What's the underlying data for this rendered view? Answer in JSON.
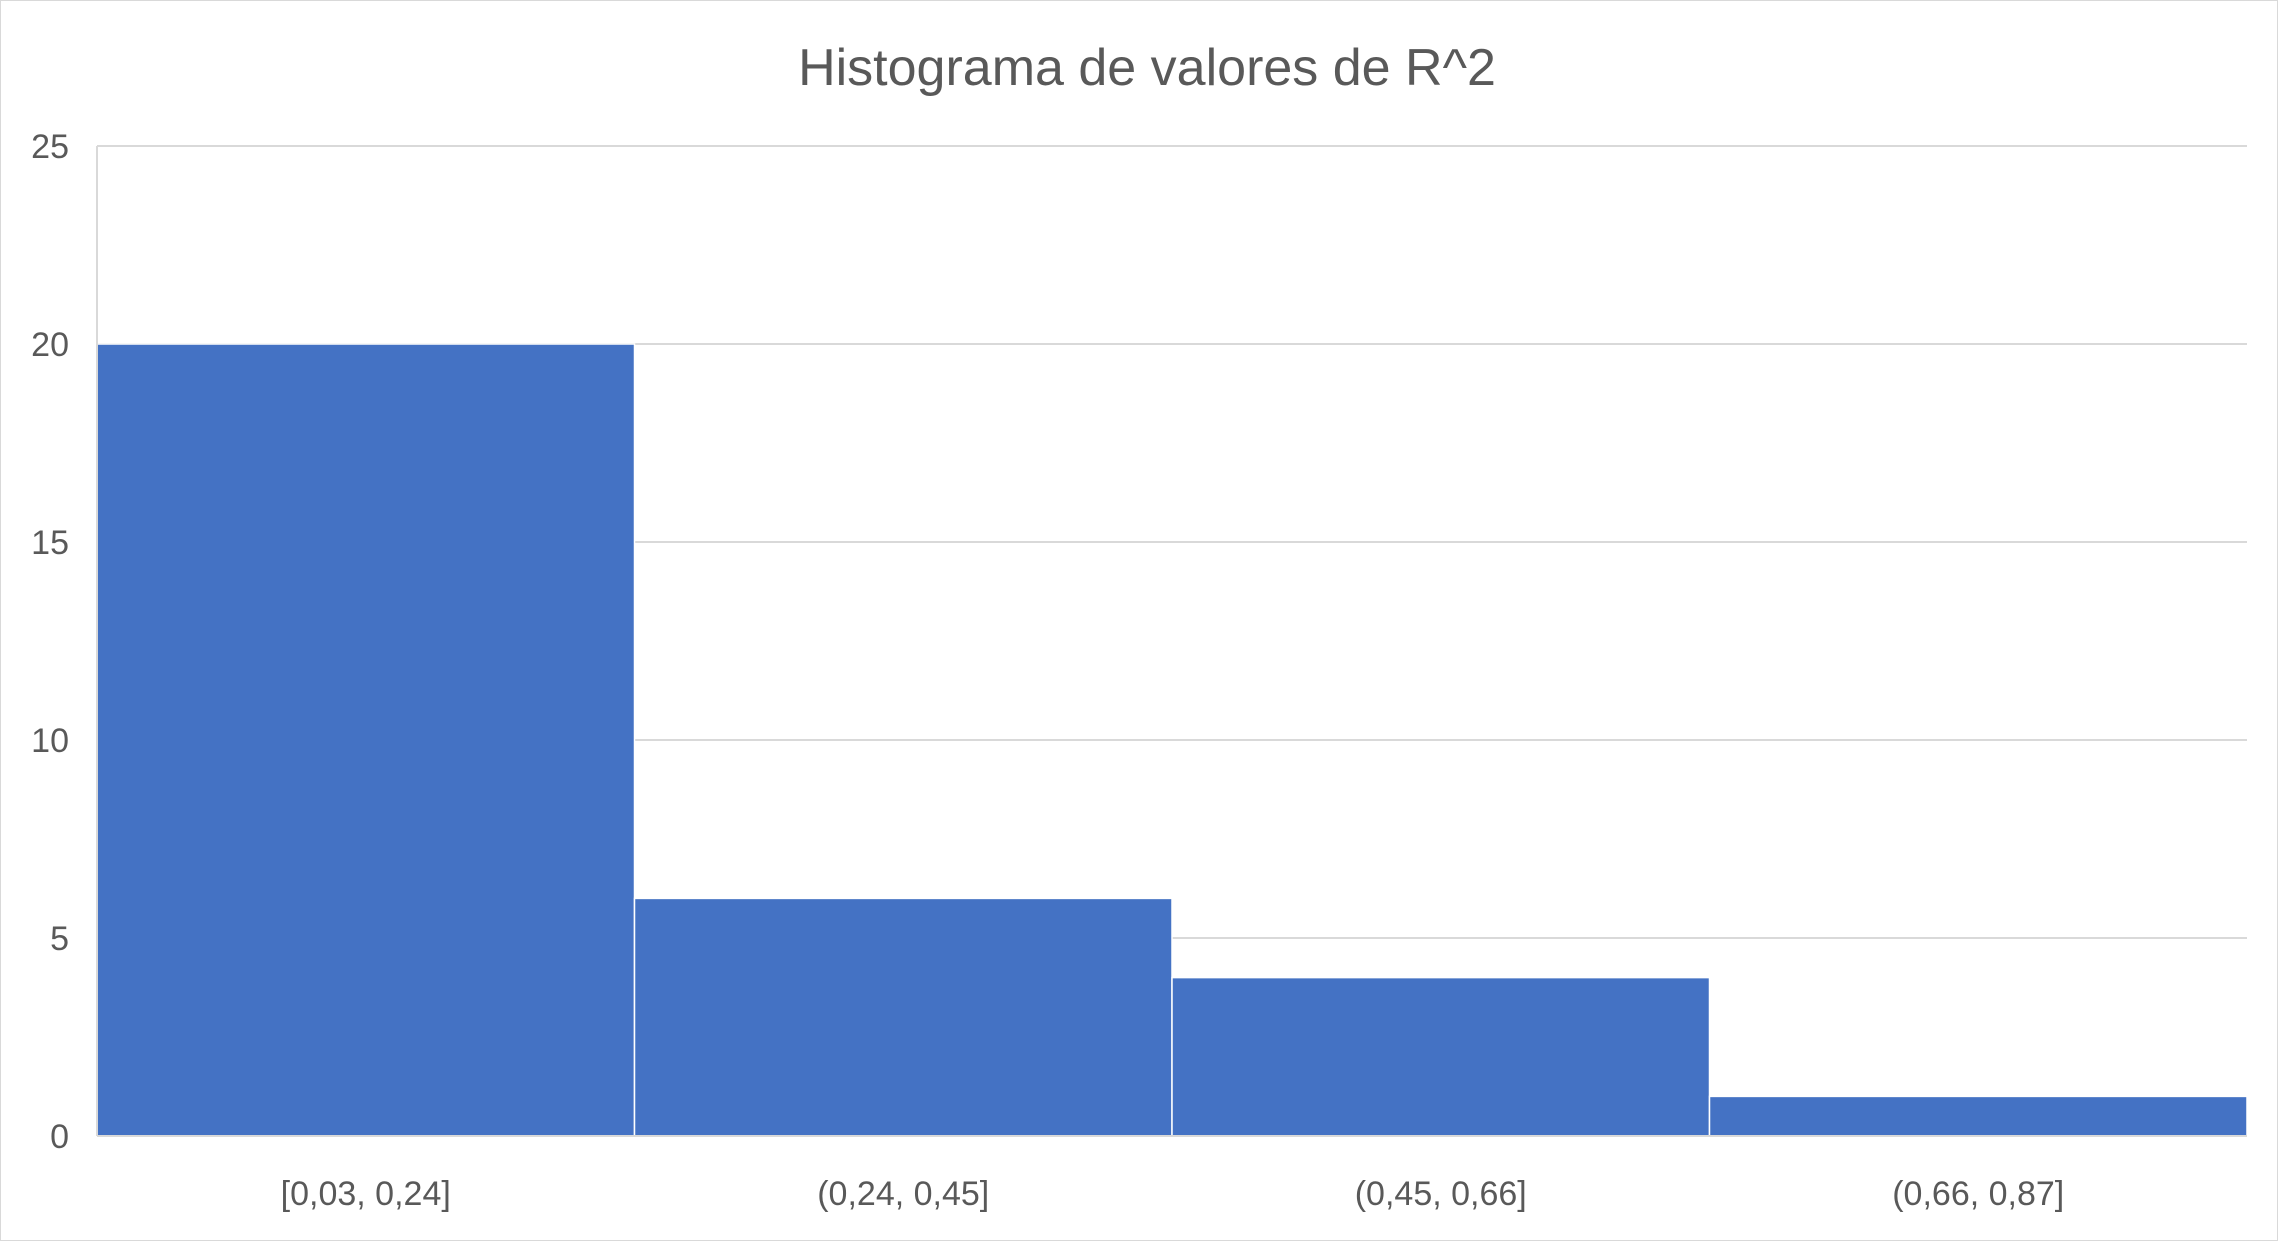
{
  "chart_data": {
    "type": "bar",
    "title": "Histograma de valores de R^2",
    "xlabel": "",
    "ylabel": "",
    "categories": [
      "[0,03, 0,24]",
      "(0,24, 0,45]",
      "(0,45, 0,66]",
      "(0,66, 0,87]"
    ],
    "values": [
      20,
      6,
      4,
      1
    ],
    "ylim": [
      0,
      25
    ],
    "yticks": [
      0,
      5,
      10,
      15,
      20,
      25
    ],
    "grid": true,
    "legend": "none",
    "colors": {
      "bar": "#4472C4",
      "grid": "#d9d9d9",
      "text": "#595959"
    }
  }
}
